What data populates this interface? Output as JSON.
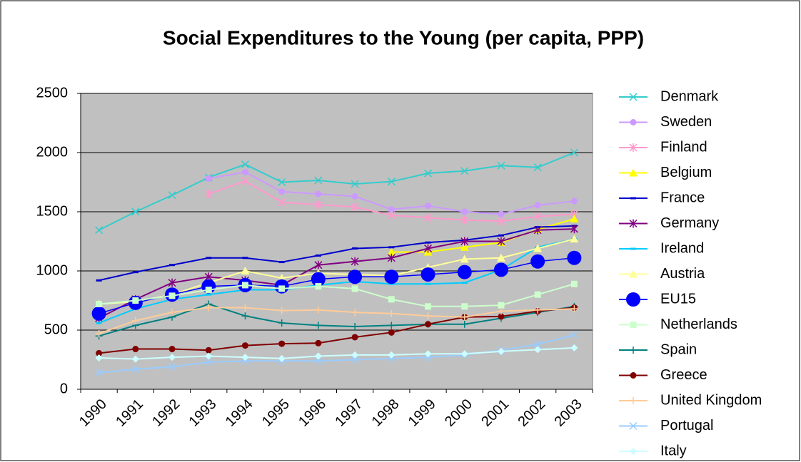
{
  "chart_data": {
    "type": "line",
    "title": "Social Expenditures to the Young (per capita, PPP)",
    "categories": [
      "1990",
      "1991",
      "1992",
      "1993",
      "1994",
      "1995",
      "1996",
      "1997",
      "1998",
      "1999",
      "2000",
      "2001",
      "2002",
      "2003"
    ],
    "ylim": [
      0,
      2500
    ],
    "yticks": [
      0,
      500,
      1000,
      1500,
      2000,
      2500
    ],
    "grid": true,
    "legend": "right",
    "series": [
      {
        "name": "Denmark",
        "color": "#33cccc",
        "marker": "x",
        "values": [
          1345,
          1500,
          1640,
          1790,
          1900,
          1750,
          1765,
          1735,
          1755,
          1825,
          1845,
          1890,
          1875,
          2000
        ]
      },
      {
        "name": "Sweden",
        "color": "#cc99ff",
        "marker": "circle",
        "values": [
          null,
          null,
          null,
          1780,
          1835,
          1670,
          1650,
          1630,
          1520,
          1550,
          1500,
          1480,
          1555,
          1590
        ]
      },
      {
        "name": "Finland",
        "color": "#ff99cc",
        "marker": "asterisk",
        "values": [
          null,
          null,
          null,
          1650,
          1760,
          1580,
          1560,
          1540,
          1470,
          1450,
          1430,
          1420,
          1460,
          1480
        ]
      },
      {
        "name": "Belgium",
        "color": "#ffff00",
        "marker": "triangle",
        "values": [
          null,
          null,
          null,
          null,
          null,
          null,
          null,
          null,
          1160,
          1160,
          1200,
          1240,
          1350,
          1440
        ]
      },
      {
        "name": "France",
        "color": "#0000cc",
        "marker": "dash",
        "values": [
          920,
          990,
          1050,
          1110,
          1110,
          1075,
          1130,
          1190,
          1200,
          1240,
          1260,
          1300,
          1370,
          1380
        ]
      },
      {
        "name": "Germany",
        "color": "#800080",
        "marker": "asterisk",
        "values": [
          600,
          760,
          900,
          950,
          920,
          880,
          1050,
          1080,
          1110,
          1190,
          1250,
          1250,
          1345,
          1355
        ]
      },
      {
        "name": "Ireland",
        "color": "#00ccff",
        "marker": "dash",
        "values": [
          560,
          680,
          760,
          800,
          840,
          840,
          880,
          910,
          890,
          890,
          900,
          1010,
          1200,
          1270
        ]
      },
      {
        "name": "Austria",
        "color": "#ffff99",
        "marker": "triangle",
        "values": [
          720,
          740,
          800,
          900,
          1000,
          940,
          980,
          970,
          960,
          1030,
          1100,
          1110,
          1190,
          1270
        ]
      },
      {
        "name": "EU15",
        "color": "#0000ff",
        "marker": "bigcircle",
        "values": [
          640,
          730,
          800,
          870,
          880,
          870,
          930,
          950,
          950,
          970,
          990,
          1010,
          1080,
          1110
        ]
      },
      {
        "name": "Netherlands",
        "color": "#ccffcc",
        "marker": "square",
        "values": [
          720,
          750,
          790,
          840,
          880,
          850,
          870,
          850,
          760,
          700,
          700,
          710,
          800,
          890
        ]
      },
      {
        "name": "Spain",
        "color": "#008080",
        "marker": "plus",
        "values": [
          450,
          540,
          610,
          720,
          620,
          560,
          540,
          530,
          540,
          550,
          550,
          600,
          650,
          700
        ]
      },
      {
        "name": "Greece",
        "color": "#800000",
        "marker": "circle",
        "values": [
          305,
          340,
          340,
          330,
          370,
          385,
          390,
          440,
          480,
          550,
          610,
          615,
          660,
          690
        ]
      },
      {
        "name": "United Kingdom",
        "color": "#ffcc99",
        "marker": "plus",
        "values": [
          470,
          580,
          650,
          690,
          690,
          665,
          670,
          650,
          640,
          620,
          610,
          660,
          670,
          680
        ]
      },
      {
        "name": "Portugal",
        "color": "#99ccff",
        "marker": "x",
        "values": [
          140,
          170,
          190,
          230,
          240,
          240,
          240,
          250,
          260,
          270,
          290,
          330,
          380,
          460
        ]
      },
      {
        "name": "Italy",
        "color": "#ccffff",
        "marker": "diamond",
        "values": [
          265,
          255,
          270,
          280,
          270,
          260,
          280,
          290,
          290,
          300,
          300,
          320,
          335,
          350
        ]
      }
    ]
  }
}
